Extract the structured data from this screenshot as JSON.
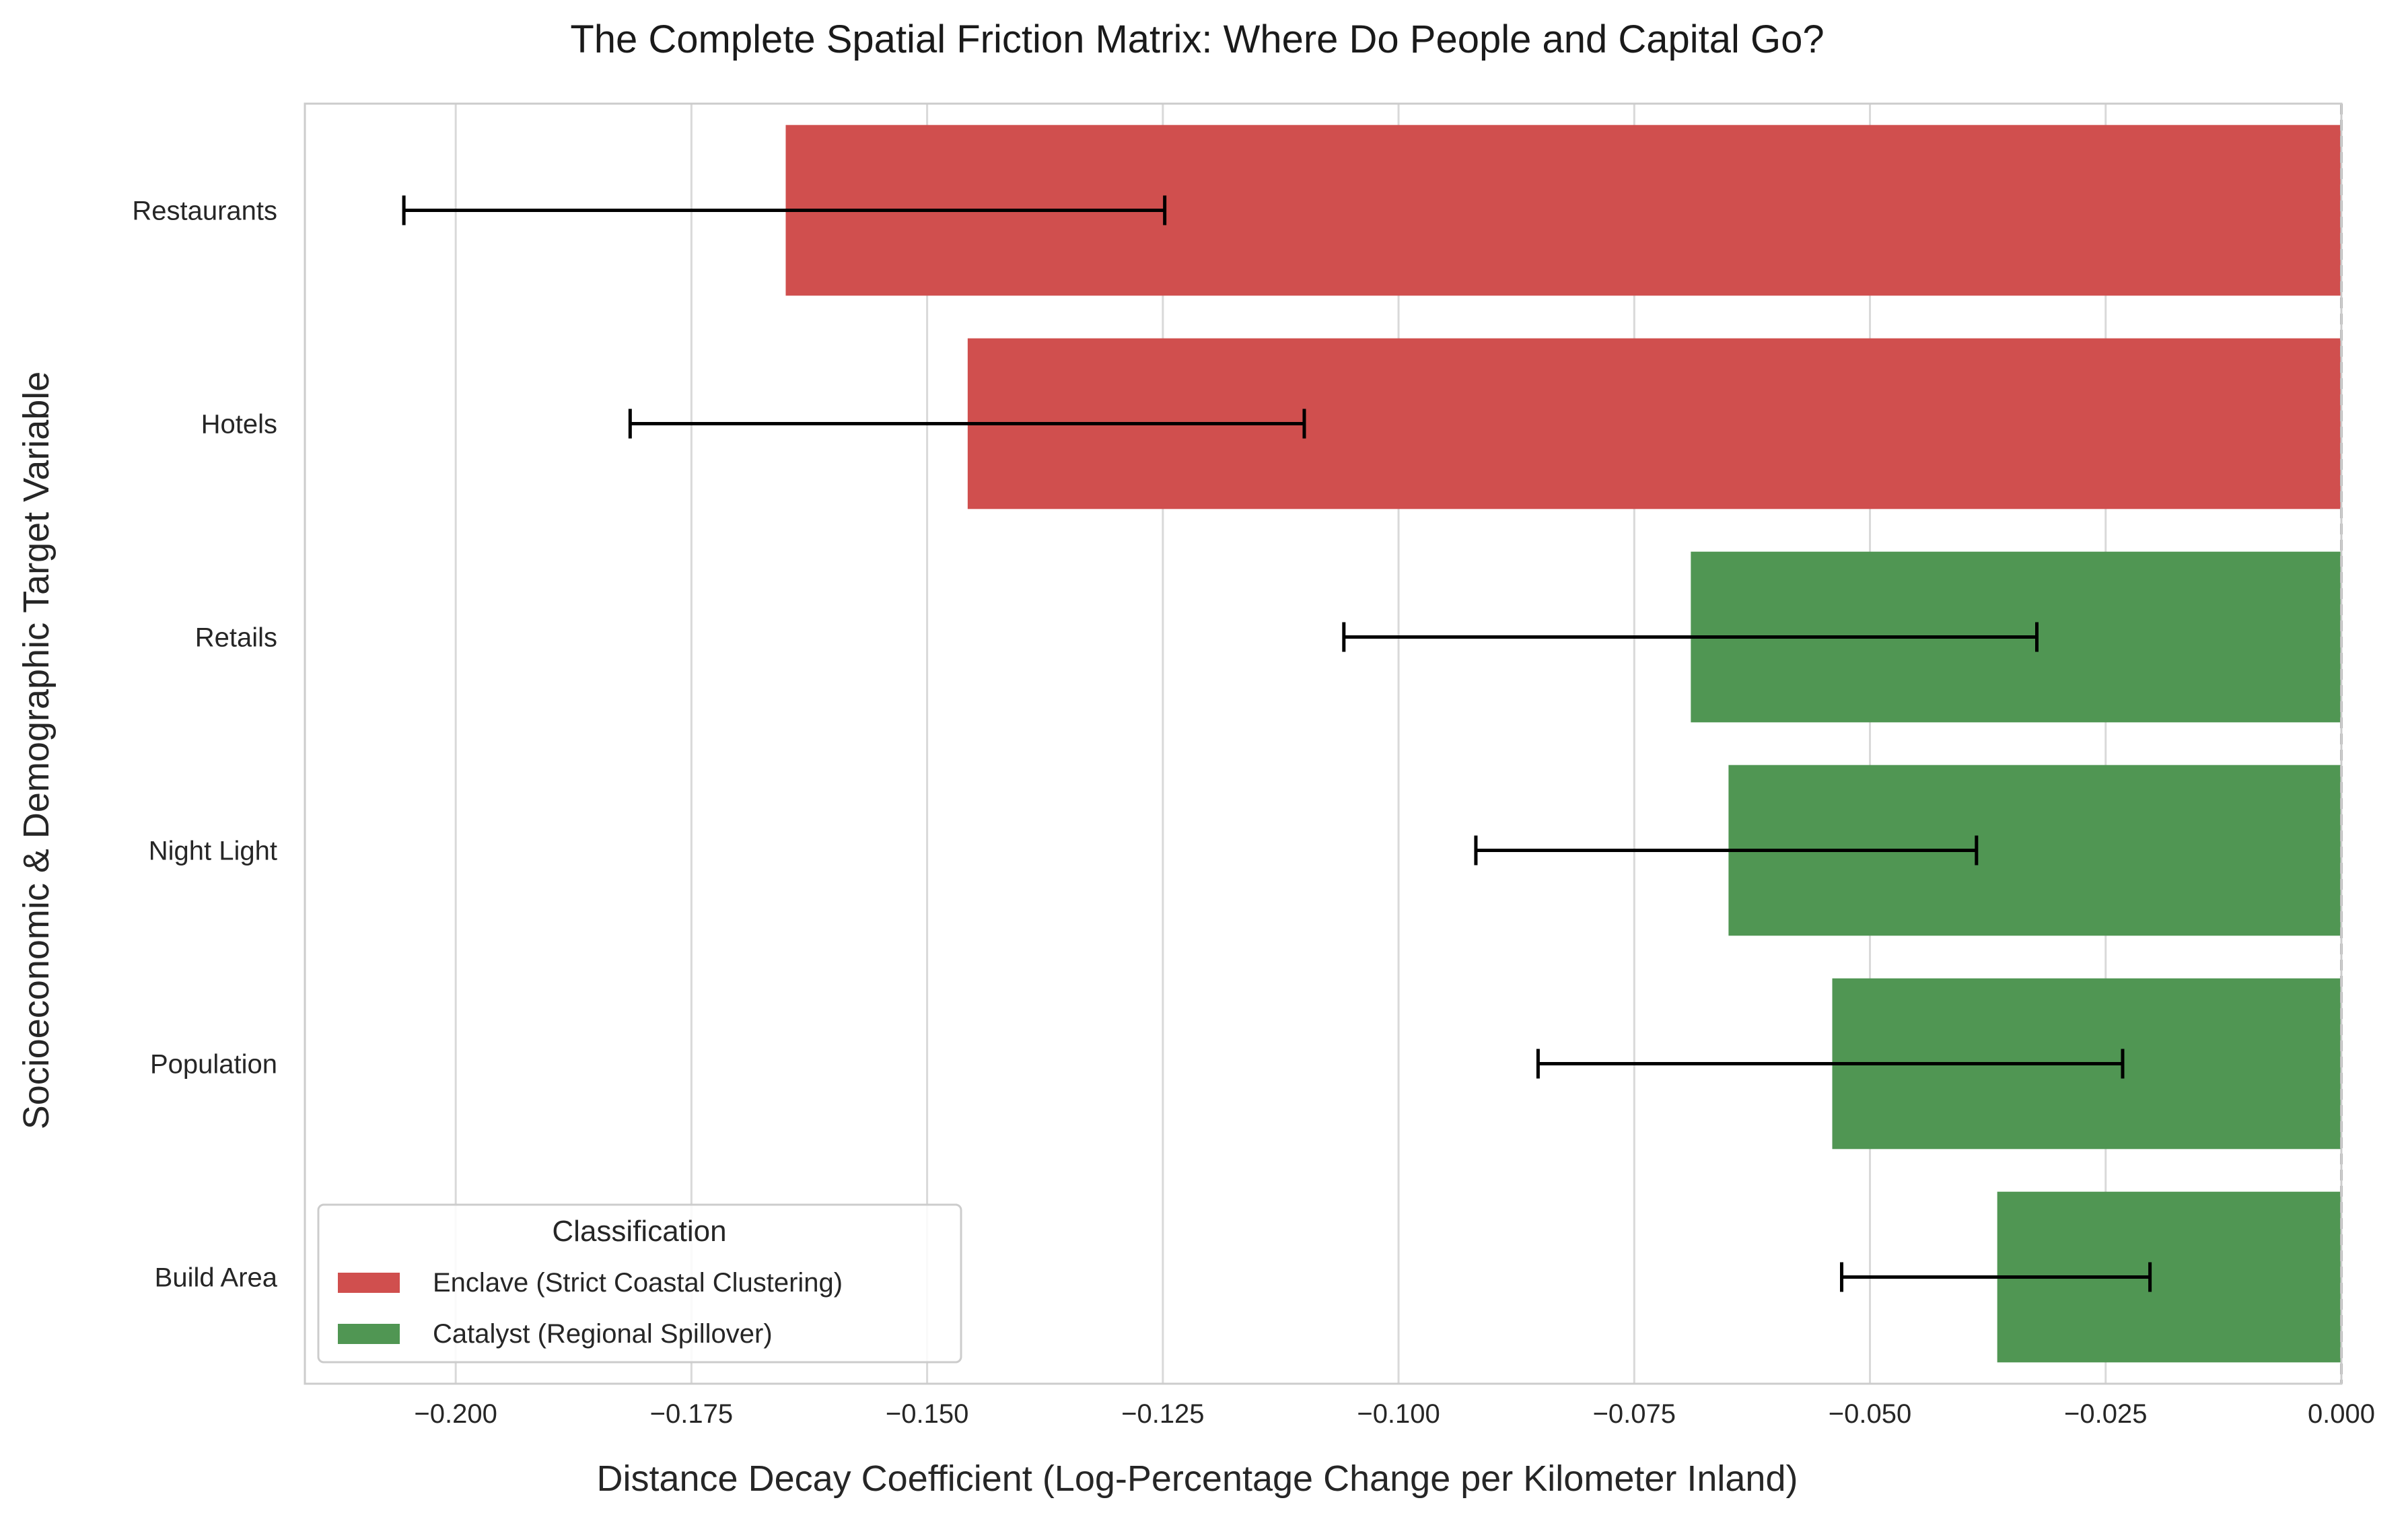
{
  "chart_data": {
    "type": "bar",
    "orientation": "horizontal",
    "title": "The Complete Spatial Friction Matrix: Where Do People and Capital Go?",
    "xlabel": "Distance Decay Coefficient (Log-Percentage Change per Kilometer Inland)",
    "ylabel": "Socioeconomic & Demographic Target Variable",
    "xlim": [
      -0.216,
      0.0
    ],
    "xticks": [
      -0.2,
      -0.175,
      -0.15,
      -0.125,
      -0.1,
      -0.075,
      -0.05,
      -0.025,
      0.0
    ],
    "xtick_labels": [
      "−0.200",
      "−0.175",
      "−0.150",
      "−0.125",
      "−0.100",
      "−0.075",
      "−0.050",
      "−0.025",
      "0.000"
    ],
    "grid": "vertical",
    "reference_line": {
      "x": 0.0,
      "style": "dashed",
      "color": "#a6a6a6"
    },
    "categories": [
      "Restaurants",
      "Hotels",
      "Retails",
      "Night Light",
      "Population",
      "Build Area"
    ],
    "values": [
      -0.165,
      -0.1457,
      -0.069,
      -0.065,
      -0.054,
      -0.0365
    ],
    "error_low": [
      -0.2055,
      -0.1815,
      -0.1058,
      -0.0918,
      -0.0852,
      -0.053
    ],
    "error_high": [
      -0.1248,
      -0.11,
      -0.0323,
      -0.0387,
      -0.0232,
      -0.0203
    ],
    "classification": [
      "Enclave (Strict Coastal Clustering)",
      "Enclave (Strict Coastal Clustering)",
      "Catalyst (Regional Spillover)",
      "Catalyst (Regional Spillover)",
      "Catalyst (Regional Spillover)",
      "Catalyst (Regional Spillover)"
    ],
    "legend": {
      "title": "Classification",
      "placement": "lower-left",
      "entries": [
        {
          "label": "Enclave (Strict Coastal Clustering)",
          "color": "#d04f4e"
        },
        {
          "label": "Catalyst (Regional Spillover)",
          "color": "#509653"
        }
      ]
    }
  }
}
